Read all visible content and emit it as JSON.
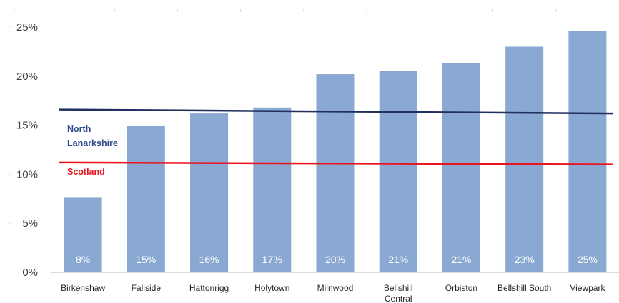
{
  "chart_data": {
    "type": "bar",
    "categories": [
      "Birkenshaw",
      "Fallside",
      "Hattonrigg",
      "Holytown",
      "Milnwood",
      "Bellshill Central",
      "Orbiston",
      "Bellshill South",
      "Viewpark"
    ],
    "category_label_lines": [
      [
        "Birkenshaw"
      ],
      [
        "Fallside"
      ],
      [
        "Hattonrigg"
      ],
      [
        "Holytown"
      ],
      [
        "Milnwood"
      ],
      [
        "Bellshill",
        "Central"
      ],
      [
        "Orbiston"
      ],
      [
        "Bellshill South"
      ],
      [
        "Viewpark"
      ]
    ],
    "values": [
      7.6,
      14.9,
      16.2,
      16.8,
      20.2,
      20.5,
      21.3,
      23.0,
      24.6
    ],
    "data_labels": [
      "8%",
      "15%",
      "16%",
      "17%",
      "20%",
      "21%",
      "21%",
      "23%",
      "25%"
    ],
    "reference_lines": [
      {
        "name": "North Lanarkshire",
        "label_lines": [
          "North",
          "Lanarkshire"
        ],
        "start": 16.6,
        "end": 16.2,
        "color": "#1f2f5f",
        "label_color": "#2e4a8a"
      },
      {
        "name": "Scotland",
        "label_lines": [
          "Scotland"
        ],
        "start": 11.2,
        "end": 11.0,
        "color": "#e8141e",
        "label_color": "#e8141e"
      }
    ],
    "ylim": [
      0,
      25
    ],
    "yticks": [
      0,
      5,
      10,
      15,
      20,
      25
    ],
    "ytick_labels": [
      "0%",
      "5%",
      "10%",
      "15%",
      "20%",
      "25%"
    ],
    "bar_color": "#8aa9d2",
    "grid": false,
    "title": "",
    "xlabel": "",
    "ylabel": ""
  }
}
